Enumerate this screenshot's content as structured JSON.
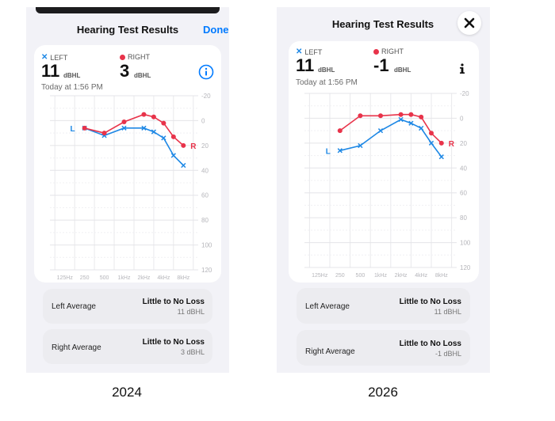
{
  "screen_2024": {
    "title": "Hearing Test Results",
    "done_label": "Done",
    "left_label": "LEFT",
    "right_label": "RIGHT",
    "left_value": "11",
    "right_value": "3",
    "unit": "dBHL",
    "timestamp": "Today at 1:56 PM",
    "left_avg_label": "Left Average",
    "left_avg_value": "Little to No Loss",
    "left_avg_sub": "11 dBHL",
    "right_avg_label": "Right Average",
    "right_avg_value": "Little to No Loss",
    "right_avg_sub": "3 dBHL",
    "year": "2024"
  },
  "screen_2026": {
    "title": "Hearing Test Results",
    "left_label": "LEFT",
    "right_label": "RIGHT",
    "left_value": "11",
    "right_value": "-1",
    "unit": "dBHL",
    "timestamp": "Today at 1:56 PM",
    "left_avg_label": "Left Average",
    "left_avg_value": "Little to No Loss",
    "left_avg_sub": "11 dBHL",
    "right_avg_label": "Right Average",
    "right_avg_value": "Little to No Loss",
    "right_avg_sub": "-1 dBHL",
    "year": "2026"
  },
  "icons": {
    "info": "info-icon",
    "close": "close-icon",
    "left_marker": "x-marker",
    "right_marker": "dot-marker"
  },
  "colors": {
    "left": "#1e88e5",
    "right": "#e8334a",
    "accent": "#007aff"
  },
  "chart_data": [
    {
      "type": "line",
      "categories": [
        "125Hz",
        "250",
        "500",
        "1kHz",
        "2kHz",
        "4kHz",
        "8kHz"
      ],
      "y_ticks": [
        "-20",
        "0",
        "20",
        "40",
        "60",
        "80",
        "100",
        "120"
      ],
      "ylim": [
        -20,
        120
      ],
      "y_inverted": true,
      "grid": true,
      "left_tag": "L",
      "right_tag": "R",
      "series": [
        {
          "name": "LEFT",
          "marker": "x",
          "color": "#1e88e5",
          "points": [
            [
              1,
              6
            ],
            [
              2,
              12
            ],
            [
              3,
              6
            ],
            [
              4,
              6
            ],
            [
              4.5,
              9
            ],
            [
              5,
              14
            ],
            [
              5.5,
              28
            ],
            [
              6,
              36
            ]
          ]
        },
        {
          "name": "RIGHT",
          "marker": "dot",
          "color": "#e8334a",
          "points": [
            [
              1,
              6
            ],
            [
              2,
              10
            ],
            [
              3,
              1
            ],
            [
              4,
              -5
            ],
            [
              4.5,
              -3
            ],
            [
              5,
              2
            ],
            [
              5.5,
              13
            ],
            [
              6,
              20
            ]
          ]
        }
      ]
    },
    {
      "type": "line",
      "categories": [
        "125Hz",
        "250",
        "500",
        "1kHz",
        "2kHz",
        "4kHz",
        "8kHz"
      ],
      "y_ticks": [
        "-20",
        "0",
        "20",
        "40",
        "60",
        "80",
        "100",
        "120"
      ],
      "ylim": [
        -20,
        120
      ],
      "y_inverted": true,
      "grid": true,
      "left_tag": "L",
      "right_tag": "R",
      "series": [
        {
          "name": "LEFT",
          "marker": "x",
          "color": "#1e88e5",
          "points": [
            [
              1,
              26
            ],
            [
              2,
              22
            ],
            [
              3,
              10
            ],
            [
              4,
              1
            ],
            [
              4.5,
              4
            ],
            [
              5,
              8
            ],
            [
              5.5,
              20
            ],
            [
              6,
              31
            ]
          ]
        },
        {
          "name": "RIGHT",
          "marker": "dot",
          "color": "#e8334a",
          "points": [
            [
              1,
              10
            ],
            [
              2,
              -2
            ],
            [
              3,
              -2
            ],
            [
              4,
              -3
            ],
            [
              4.5,
              -3
            ],
            [
              5,
              -1
            ],
            [
              5.5,
              12
            ],
            [
              6,
              20
            ]
          ]
        }
      ]
    }
  ]
}
